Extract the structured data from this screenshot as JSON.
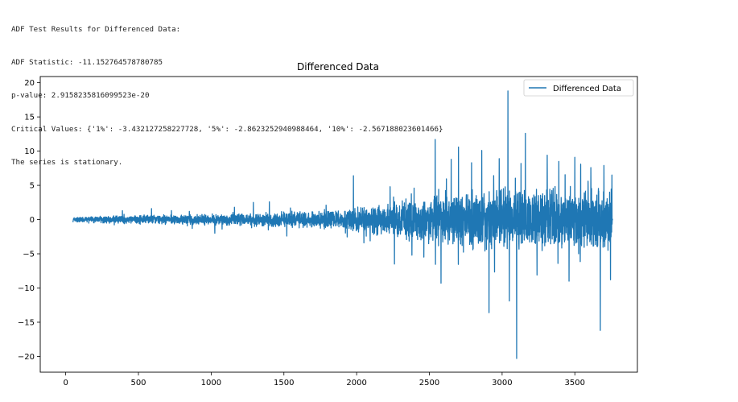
{
  "output": {
    "lines": [
      "ADF Test Results for Differenced Data:",
      "ADF Statistic: -11.152764578780785",
      "p-value: 2.9158235816099523e-20",
      "Critical Values: {'1%': -3.432127258227728, '5%': -2.8623252940988464, '10%': -2.567188023601466}",
      "The series is stationary."
    ]
  },
  "chart_data": {
    "type": "line",
    "title": "Differenced Data",
    "xlabel": "",
    "ylabel": "",
    "xlim": [
      -175,
      3930
    ],
    "ylim": [
      -22.3,
      20.9
    ],
    "xticks": [
      0,
      500,
      1000,
      1500,
      2000,
      2500,
      3000,
      3500
    ],
    "yticks": [
      -20,
      -15,
      -10,
      -5,
      0,
      5,
      10,
      15,
      20
    ],
    "grid": false,
    "legend": {
      "placement": "upper-right",
      "entries": [
        "Differenced Data"
      ]
    },
    "series": [
      {
        "name": "Differenced Data",
        "color": "#1f77b4",
        "x_start": 50,
        "x_end": 3760,
        "envelope": [
          {
            "x": 50,
            "amp": 0.4
          },
          {
            "x": 500,
            "amp": 0.7
          },
          {
            "x": 1000,
            "amp": 0.9
          },
          {
            "x": 1500,
            "amp": 1.2
          },
          {
            "x": 1900,
            "amp": 1.6
          },
          {
            "x": 2100,
            "amp": 2.6
          },
          {
            "x": 2300,
            "amp": 3.0
          },
          {
            "x": 2500,
            "amp": 3.8
          },
          {
            "x": 2700,
            "amp": 4.6
          },
          {
            "x": 3000,
            "amp": 5.0
          },
          {
            "x": 3300,
            "amp": 5.0
          },
          {
            "x": 3600,
            "amp": 5.2
          },
          {
            "x": 3760,
            "amp": 5.4
          }
        ],
        "spikes": [
          {
            "x": 390,
            "y": 1.3
          },
          {
            "x": 590,
            "y": 1.6
          },
          {
            "x": 870,
            "y": -1.3
          },
          {
            "x": 1025,
            "y": -2.0
          },
          {
            "x": 1160,
            "y": 1.8
          },
          {
            "x": 1290,
            "y": 2.5
          },
          {
            "x": 1400,
            "y": 2.6
          },
          {
            "x": 1520,
            "y": -2.4
          },
          {
            "x": 1790,
            "y": 2.1
          },
          {
            "x": 1978,
            "y": 6.4
          },
          {
            "x": 2050,
            "y": -3.4
          },
          {
            "x": 2230,
            "y": 4.8
          },
          {
            "x": 2260,
            "y": -6.5
          },
          {
            "x": 2380,
            "y": -5.2
          },
          {
            "x": 2395,
            "y": 4.6
          },
          {
            "x": 2540,
            "y": 11.7
          },
          {
            "x": 2580,
            "y": -9.3
          },
          {
            "x": 2650,
            "y": 8.8
          },
          {
            "x": 2700,
            "y": 10.6
          },
          {
            "x": 2790,
            "y": 8.3
          },
          {
            "x": 2860,
            "y": 10.1
          },
          {
            "x": 2910,
            "y": -13.6
          },
          {
            "x": 2980,
            "y": 8.9
          },
          {
            "x": 3040,
            "y": 18.8
          },
          {
            "x": 3050,
            "y": -11.9
          },
          {
            "x": 3100,
            "y": -20.3
          },
          {
            "x": 3130,
            "y": 8.2
          },
          {
            "x": 3160,
            "y": 12.6
          },
          {
            "x": 3240,
            "y": -8.1
          },
          {
            "x": 3310,
            "y": 9.4
          },
          {
            "x": 3390,
            "y": 8.5
          },
          {
            "x": 3460,
            "y": -9.0
          },
          {
            "x": 3500,
            "y": 9.1
          },
          {
            "x": 3540,
            "y": 8.1
          },
          {
            "x": 3610,
            "y": 7.6
          },
          {
            "x": 3675,
            "y": -16.2
          },
          {
            "x": 3700,
            "y": 7.9
          },
          {
            "x": 3745,
            "y": -8.8
          },
          {
            "x": 3755,
            "y": 6.5
          }
        ]
      }
    ]
  }
}
